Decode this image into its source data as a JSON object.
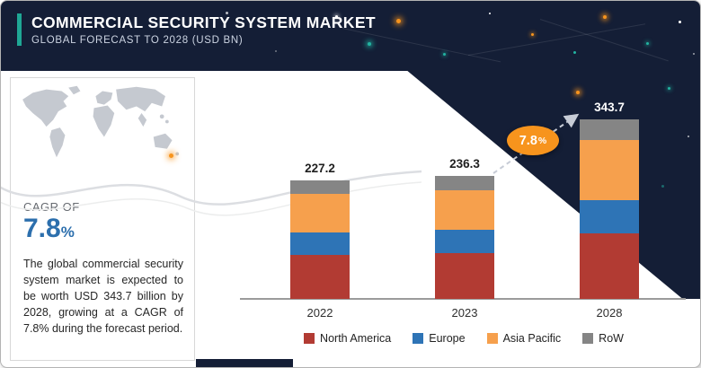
{
  "header": {
    "title": "COMMERCIAL SECURITY SYSTEM MARKET",
    "subtitle": "GLOBAL FORECAST TO 2028 (USD BN)",
    "colors": {
      "background": "#141e36",
      "accent_bar": "#1fa795",
      "title_text": "#ffffff",
      "subtitle_text": "#ccd4e2"
    }
  },
  "sidebar": {
    "cagr_label": "CAGR OF",
    "cagr_value": "7.8",
    "cagr_percent": "%",
    "cagr_color": "#2c6fad",
    "description": "The global commercial security system market is expected to be worth USD 343.7 billion by 2028, growing at a CAGR of 7.8% during the forecast period."
  },
  "chart_data": {
    "type": "bar",
    "stacked": true,
    "unit": "USD BN",
    "title": "Commercial Security System Market, Global Forecast to 2028 (USD BN)",
    "categories": [
      "2022",
      "2023",
      "2028"
    ],
    "totals": [
      227.2,
      236.3,
      343.7
    ],
    "series": [
      {
        "name": "North America",
        "color": "#b23b33",
        "values": [
          85.0,
          88.0,
          125.0
        ]
      },
      {
        "name": "Europe",
        "color": "#2e74b6",
        "values": [
          43.0,
          45.0,
          65.0
        ]
      },
      {
        "name": "Asia Pacific",
        "color": "#f6a04d",
        "values": [
          73.0,
          76.0,
          115.0
        ]
      },
      {
        "name": "RoW",
        "color": "#858585",
        "values": [
          26.2,
          27.3,
          38.7
        ]
      }
    ],
    "growth_value": "7.8",
    "growth_percent": "%",
    "growth_badge_color": "#f7941d",
    "total_label_colors": [
      "#1f1f1f",
      "#1f1f1f",
      "#ffffff"
    ],
    "legend_position": "bottom",
    "ylim": [
      0,
      380
    ],
    "grid": false
  }
}
